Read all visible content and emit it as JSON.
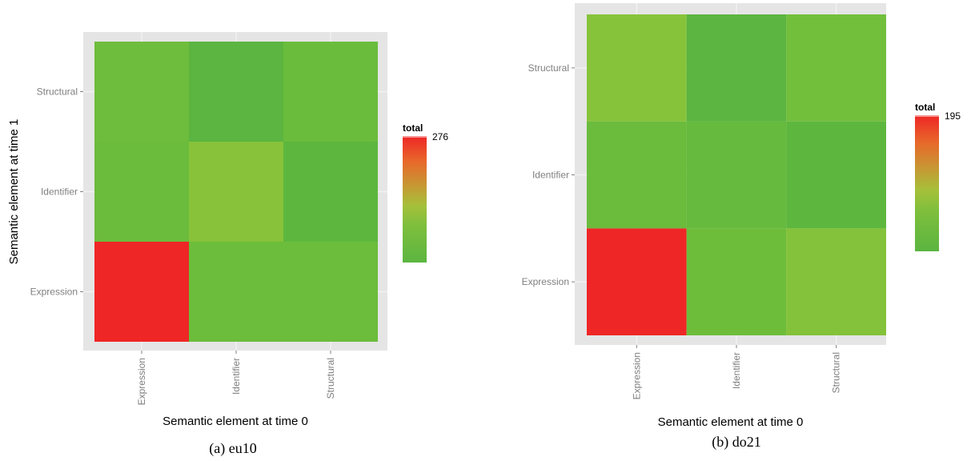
{
  "chart_data": [
    {
      "type": "heatmap",
      "caption": "(a) eu10",
      "xlabel": "Semantic element at time 0",
      "ylabel": "Semantic element at time 1",
      "x_categories": [
        "Expression",
        "Identifier",
        "Structural"
      ],
      "y_categories": [
        "Expression",
        "Identifier",
        "Structural"
      ],
      "cell_colors": [
        [
          "#ee2626",
          "#6bbd3b",
          "#6bbd3b"
        ],
        [
          "#6bbb3c",
          "#87c23a",
          "#5db73e"
        ],
        [
          "#6ebd3c",
          "#5bb540",
          "#6abd3c"
        ]
      ],
      "legend_title": "total",
      "legend_max_label": "276",
      "grid": true
    },
    {
      "type": "heatmap",
      "caption": "(b) do21",
      "xlabel": "Semantic element at time 0",
      "ylabel": "",
      "x_categories": [
        "Expression",
        "Identifier",
        "Structural"
      ],
      "y_categories": [
        "Expression",
        "Identifier",
        "Structural"
      ],
      "cell_colors": [
        [
          "#ee2626",
          "#6dbd3b",
          "#83c23a"
        ],
        [
          "#6bbb3c",
          "#66ba3d",
          "#5db73e"
        ],
        [
          "#87c33a",
          "#5bb540",
          "#72bf3c"
        ]
      ],
      "legend_title": "total",
      "legend_max_label": "195",
      "grid": true
    }
  ]
}
